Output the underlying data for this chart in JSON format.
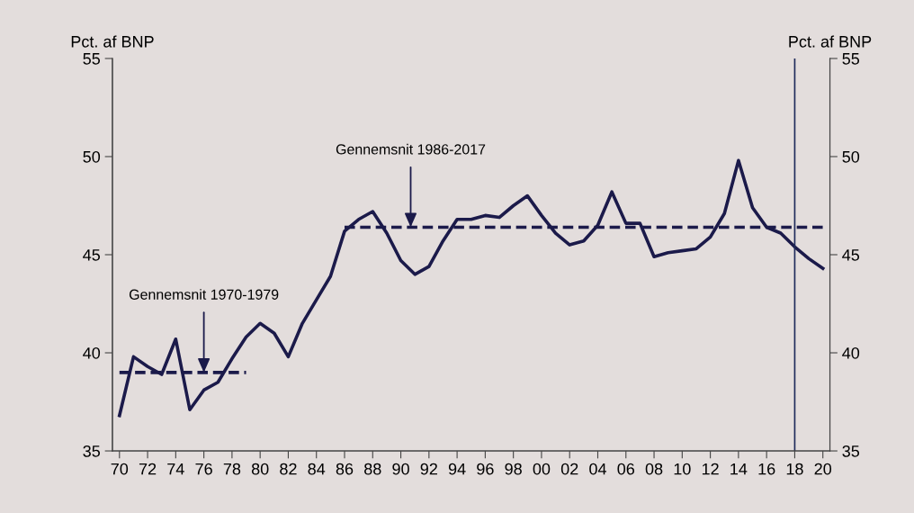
{
  "chart_data": {
    "type": "line",
    "ylabel": "Pct. af BNP",
    "y2label": "Pct. af BNP",
    "x": [
      1970,
      1971,
      1972,
      1973,
      1974,
      1975,
      1976,
      1977,
      1978,
      1979,
      1980,
      1981,
      1982,
      1983,
      1984,
      1985,
      1986,
      1987,
      1988,
      1989,
      1990,
      1991,
      1992,
      1993,
      1994,
      1995,
      1996,
      1997,
      1998,
      1999,
      2000,
      2001,
      2002,
      2003,
      2004,
      2005,
      2006,
      2007,
      2008,
      2009,
      2010,
      2011,
      2012,
      2013,
      2014,
      2015,
      2016,
      2017,
      2018,
      2019,
      2020
    ],
    "series": [
      {
        "color": "#1b1a4a",
        "line_style": "solid",
        "values": [
          36.8,
          39.8,
          39.3,
          38.9,
          40.7,
          37.1,
          38.1,
          38.5,
          39.7,
          40.8,
          41.5,
          41.0,
          39.8,
          41.5,
          42.7,
          43.9,
          46.2,
          46.8,
          47.2,
          46.1,
          44.7,
          44.0,
          44.4,
          45.7,
          46.8,
          46.8,
          47.0,
          46.9,
          47.5,
          48.0,
          47.0,
          46.1,
          45.5,
          45.7,
          46.5,
          48.2,
          46.6,
          46.6,
          44.9,
          45.1,
          45.2,
          45.3,
          45.9,
          47.1,
          49.8,
          47.4,
          46.4,
          46.1,
          45.4,
          44.8,
          44.3
        ]
      },
      {
        "color": "#1b1a4a",
        "line_style": "dashed",
        "x": [
          1970,
          1979
        ],
        "values": [
          39.0,
          39.0
        ]
      },
      {
        "color": "#1b1a4a",
        "line_style": "dashed",
        "x": [
          1986,
          2020
        ],
        "values": [
          46.4,
          46.4
        ]
      }
    ],
    "xlim": [
      1969.5,
      2020.5
    ],
    "xticks": [
      {
        "value": 1970,
        "label": "70"
      },
      {
        "value": 1972,
        "label": "72"
      },
      {
        "value": 1974,
        "label": "74"
      },
      {
        "value": 1976,
        "label": "76"
      },
      {
        "value": 1978,
        "label": "78"
      },
      {
        "value": 1980,
        "label": "80"
      },
      {
        "value": 1982,
        "label": "82"
      },
      {
        "value": 1984,
        "label": "84"
      },
      {
        "value": 1986,
        "label": "86"
      },
      {
        "value": 1988,
        "label": "88"
      },
      {
        "value": 1990,
        "label": "90"
      },
      {
        "value": 1992,
        "label": "92"
      },
      {
        "value": 1994,
        "label": "94"
      },
      {
        "value": 1996,
        "label": "96"
      },
      {
        "value": 1998,
        "label": "98"
      },
      {
        "value": 2000,
        "label": "00"
      },
      {
        "value": 2002,
        "label": "02"
      },
      {
        "value": 2004,
        "label": "04"
      },
      {
        "value": 2006,
        "label": "06"
      },
      {
        "value": 2008,
        "label": "08"
      },
      {
        "value": 2010,
        "label": "10"
      },
      {
        "value": 2012,
        "label": "12"
      },
      {
        "value": 2014,
        "label": "14"
      },
      {
        "value": 2016,
        "label": "16"
      },
      {
        "value": 2018,
        "label": "18"
      },
      {
        "value": 2020,
        "label": "20"
      }
    ],
    "ylim": [
      35,
      55
    ],
    "yticks": [
      35,
      40,
      45,
      50,
      55
    ],
    "y2lim": [
      35,
      55
    ],
    "y2ticks": [
      35,
      40,
      45,
      50,
      55
    ],
    "ref_lines": [
      {
        "axis": "x",
        "value": 2018,
        "color": "#1f2a5a"
      }
    ],
    "annotations": [
      {
        "text": "Gennemsnit 1970-1979",
        "x": 1976,
        "y": 39.0
      },
      {
        "text": "Gennemsnit 1986-2017",
        "x": 1990.7,
        "y": 46.4
      }
    ],
    "grid": false,
    "legend": false
  }
}
